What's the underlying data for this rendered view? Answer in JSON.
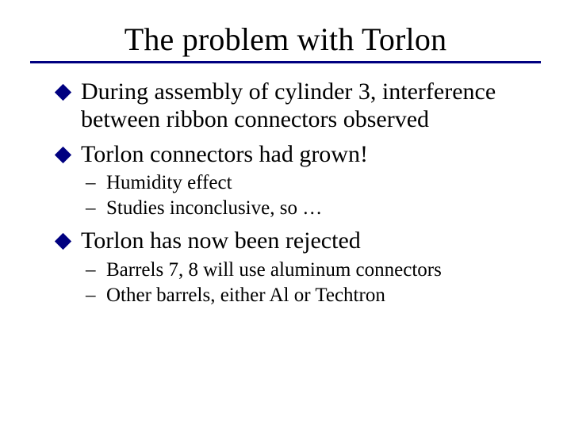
{
  "colors": {
    "title": "#000000",
    "rule": "#000080",
    "bullet": "#000080",
    "body": "#000000"
  },
  "title": "The problem with Torlon",
  "items": [
    {
      "level": 1,
      "text": "During assembly of cylinder 3, interference between ribbon connectors observed"
    },
    {
      "level": 1,
      "text": "Torlon connectors had grown!"
    },
    {
      "level": 2,
      "text": "Humidity effect"
    },
    {
      "level": 2,
      "text": "Studies inconclusive, so …"
    },
    {
      "level": 1,
      "text": "Torlon has now been rejected"
    },
    {
      "level": 2,
      "text": "Barrels 7, 8 will use aluminum connectors"
    },
    {
      "level": 2,
      "text": "Other barrels, either Al or Techtron"
    }
  ]
}
